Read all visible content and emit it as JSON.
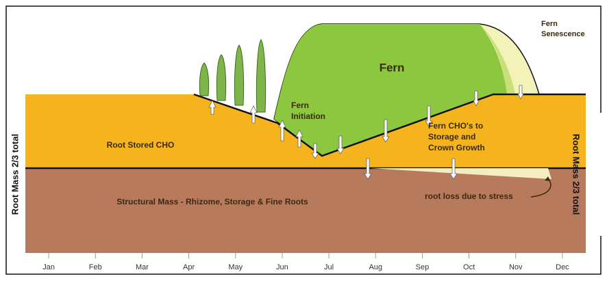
{
  "labels": {
    "fern": "Fern",
    "fern_senescence": [
      "Fern",
      "Senescence"
    ],
    "fern_initiation": [
      "Fern",
      "Initiation"
    ],
    "root_stored_cho": "Root Stored CHO",
    "fern_cho": [
      "Fern CHO's to",
      "Storage and",
      "Crown Growth"
    ],
    "structural_mass": "Structural Mass - Rhizome, Storage & Fine Roots",
    "root_loss": "root loss due to stress",
    "root_mass_left": "Root Mass 2/3 total",
    "root_mass_right": "Root Mass 2/3 total"
  },
  "months": [
    "Jan",
    "Feb",
    "Mar",
    "Apr",
    "May",
    "Jun",
    "Jul",
    "Aug",
    "Sep",
    "Oct",
    "Nov",
    "Dec"
  ]
}
